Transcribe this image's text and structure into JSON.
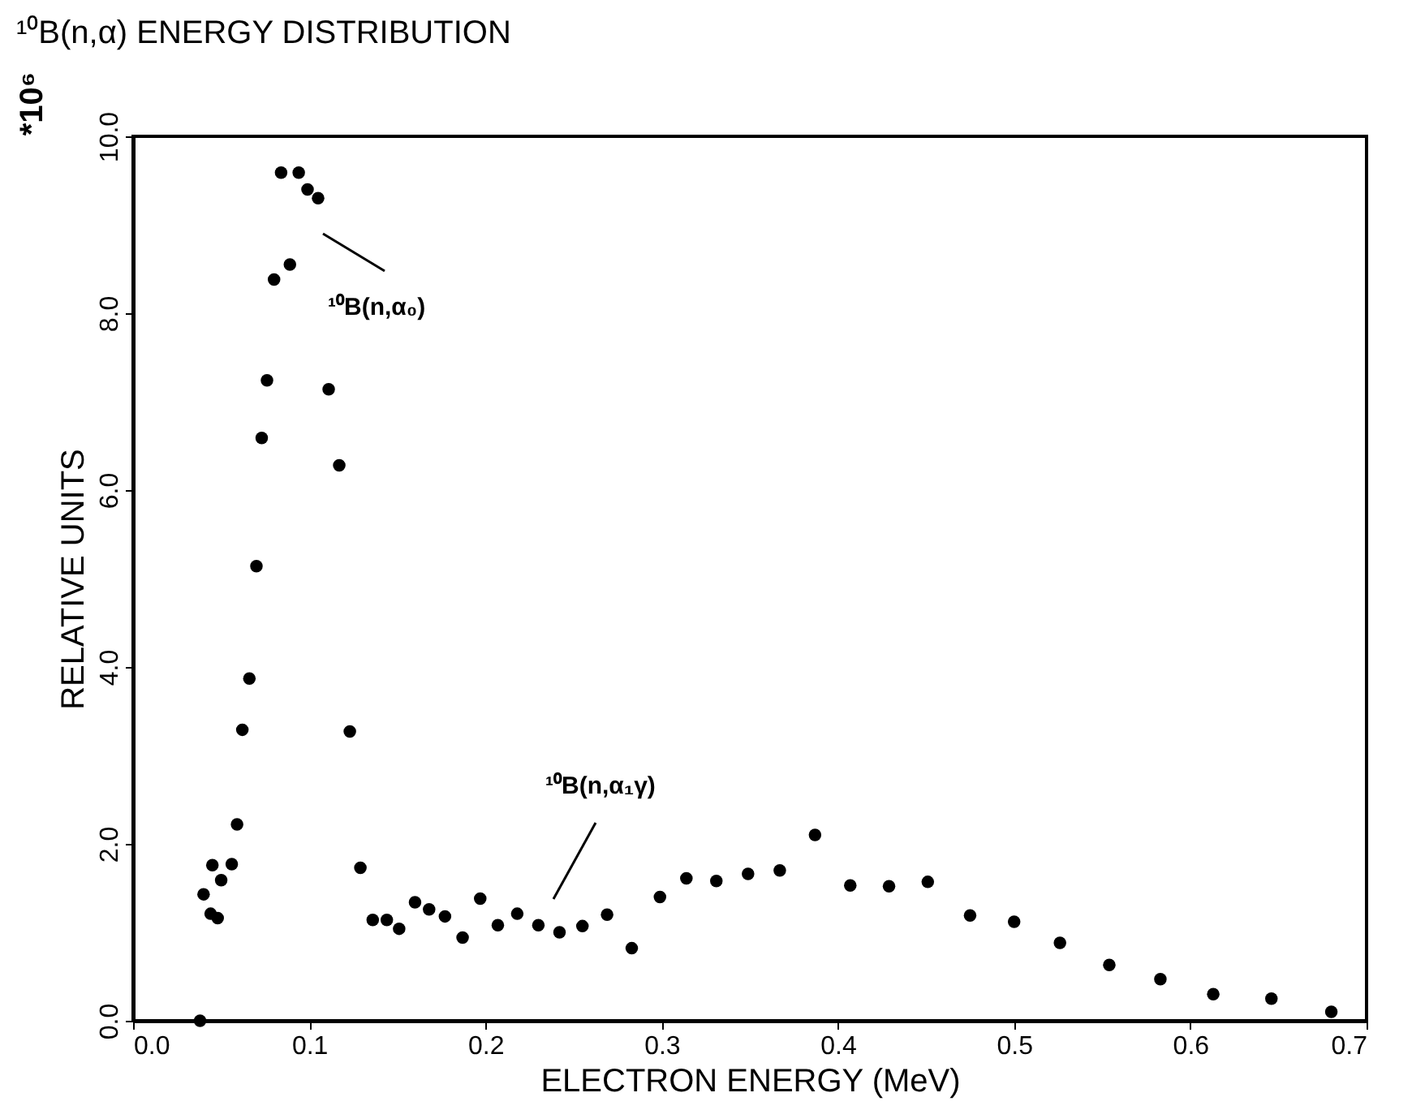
{
  "chart_data": {
    "type": "scatter",
    "title": "¹⁰B(n,α) ENERGY DISTRIBUTION",
    "xlabel": "ELECTRON ENERGY (MeV)",
    "ylabel": "RELATIVE UNITS",
    "x": [
      0.038,
      0.04,
      0.044,
      0.048,
      0.045,
      0.05,
      0.056,
      0.059,
      0.062,
      0.066,
      0.07,
      0.073,
      0.076,
      0.08,
      0.089,
      0.084,
      0.094,
      0.099,
      0.105,
      0.111,
      0.117,
      0.123,
      0.129,
      0.136,
      0.144,
      0.151,
      0.16,
      0.168,
      0.177,
      0.187,
      0.197,
      0.207,
      0.218,
      0.23,
      0.242,
      0.255,
      0.269,
      0.283,
      0.299,
      0.314,
      0.331,
      0.349,
      0.367,
      0.387,
      0.407,
      0.429,
      0.451,
      0.475,
      0.5,
      0.526,
      0.554,
      0.583,
      0.613,
      0.646,
      0.68
    ],
    "values": [
      0.0,
      1.43,
      1.21,
      1.16,
      1.76,
      1.59,
      1.77,
      2.22,
      3.29,
      3.87,
      5.14,
      6.59,
      7.24,
      8.38,
      8.55,
      9.59,
      9.59,
      9.4,
      9.3,
      7.14,
      6.28,
      3.27,
      1.73,
      1.14,
      1.14,
      1.04,
      1.34,
      1.26,
      1.18,
      0.94,
      1.38,
      1.08,
      1.21,
      1.08,
      1.0,
      1.07,
      1.2,
      0.82,
      1.4,
      1.61,
      1.58,
      1.66,
      1.7,
      2.1,
      1.53,
      1.52,
      1.57,
      1.19,
      1.12,
      0.88,
      0.63,
      0.47,
      0.3,
      0.25,
      0.1
    ],
    "color": "#000000",
    "marker": "circle",
    "grid": false,
    "xlim": [
      0,
      0.7
    ],
    "xticks": [
      {
        "value": 0,
        "label": "0.0"
      },
      0.1,
      0.2,
      0.3,
      0.4,
      0.5,
      0.6,
      0.7
    ],
    "ylim": [
      0,
      10
    ],
    "yticks": [
      {
        "value": 0,
        "label": "0.0"
      },
      {
        "value": 2,
        "label": "2.0"
      },
      {
        "value": 4,
        "label": "4.0"
      },
      {
        "value": 6,
        "label": "6.0"
      },
      {
        "value": 8,
        "label": "8.0"
      },
      {
        "value": 10,
        "label": "10.0"
      }
    ],
    "annotations": [
      "*10⁶",
      "¹⁰B(n,α₀)",
      "¹⁰B(n,α₁γ)"
    ]
  }
}
